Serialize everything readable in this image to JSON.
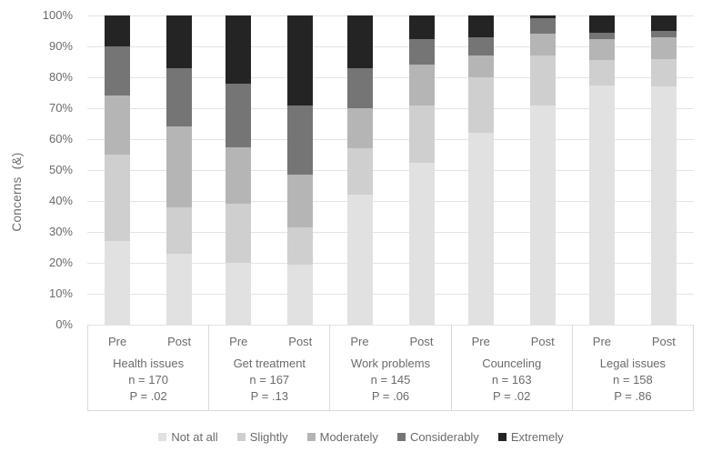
{
  "chart_data": {
    "type": "bar",
    "stacked": true,
    "percent_stacked": true,
    "title": "",
    "xlabel": "",
    "ylabel": "Concerns (&)",
    "ylim": [
      0,
      100
    ],
    "grid": true,
    "legend_position": "bottom",
    "yticks": [
      "0%",
      "10%",
      "20%",
      "30%",
      "40%",
      "50%",
      "60%",
      "70%",
      "80%",
      "90%",
      "100%"
    ],
    "sub_labels": [
      "Pre",
      "Post"
    ],
    "bars": [
      "Pre",
      "Post",
      "Pre",
      "Post",
      "Pre",
      "Post",
      "Pre",
      "Post",
      "Pre",
      "Post"
    ],
    "groups": [
      {
        "label": "Health issues",
        "n": "n = 170",
        "p": "P = .02"
      },
      {
        "label": "Get treatment",
        "n": "n = 167",
        "p": "P = .13"
      },
      {
        "label": "Work problems",
        "n": "n = 145",
        "p": "P = .06"
      },
      {
        "label": "Counceling",
        "n": "n = 163",
        "p": "P = .02"
      },
      {
        "label": "Legal issues",
        "n": "n = 158",
        "p": "P = .86"
      }
    ],
    "series": [
      {
        "name": "Not at all",
        "color": "#e1e1e1",
        "values": [
          27,
          23,
          20,
          19.5,
          42,
          52.5,
          62,
          71,
          77.5,
          77
        ]
      },
      {
        "name": "Slightly",
        "color": "#cfcfcf",
        "values": [
          28,
          15,
          19,
          12,
          15,
          18.5,
          18,
          16,
          8,
          9
        ]
      },
      {
        "name": "Moderately",
        "color": "#b5b5b5",
        "values": [
          19,
          26,
          18.5,
          17,
          13,
          13,
          7,
          7,
          7,
          7
        ]
      },
      {
        "name": "Considerably",
        "color": "#757575",
        "values": [
          16,
          19,
          20.5,
          22.5,
          13,
          8.5,
          6,
          5,
          2,
          2
        ]
      },
      {
        "name": "Extremely",
        "color": "#242424",
        "values": [
          10,
          17,
          22,
          29,
          17,
          7.5,
          7,
          1,
          5.5,
          5
        ]
      }
    ],
    "colors": {
      "gridline": "#e4e4e4",
      "axis_border": "#dadada",
      "text": "#6b6b6b"
    }
  }
}
